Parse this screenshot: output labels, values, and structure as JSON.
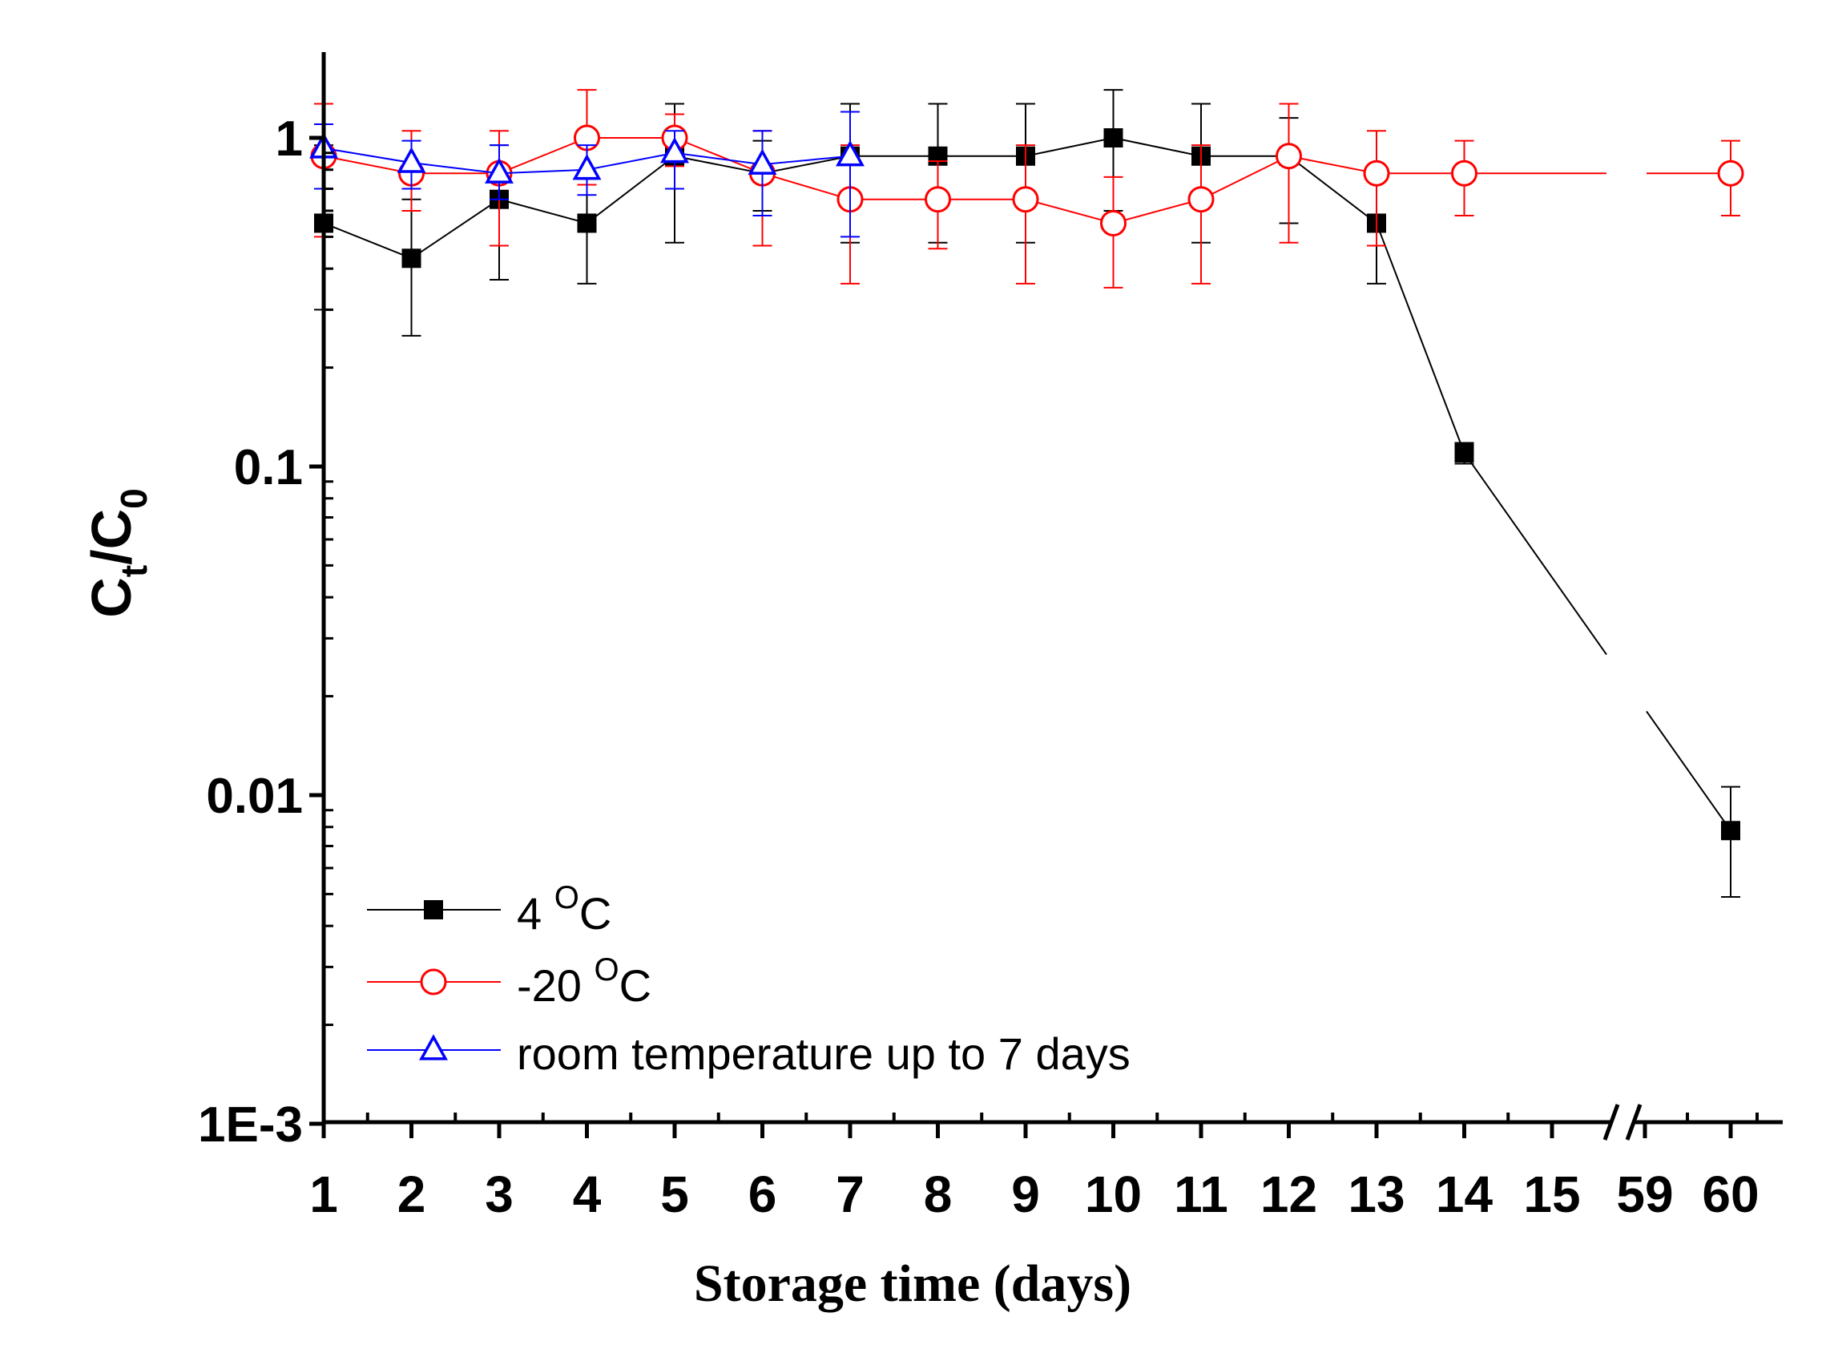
{
  "chart_data": {
    "type": "line",
    "yscale": "log",
    "xlabel": "Storage time (days)",
    "ylabel": {
      "main": "C",
      "sub1": "t",
      "mid": "/C",
      "sub2": "0"
    },
    "ylim": [
      0.001,
      2
    ],
    "x_categories": [
      "1",
      "2",
      "3",
      "4",
      "5",
      "6",
      "7",
      "8",
      "9",
      "10",
      "11",
      "12",
      "13",
      "14",
      "15",
      "59",
      "60"
    ],
    "y_ticks": [
      {
        "value": 1,
        "label": "1"
      },
      {
        "value": 0.1,
        "label": "0.1"
      },
      {
        "value": 0.01,
        "label": "0.01"
      },
      {
        "value": 0.001,
        "label": "1E-3"
      }
    ],
    "axis_break_after": "15",
    "series": [
      {
        "name": "4 °C",
        "legend_label": "4 ",
        "legend_sup": "O",
        "legend_suffix": "C",
        "color": "#000000",
        "marker": "filled-square",
        "x": [
          "1",
          "2",
          "3",
          "4",
          "5",
          "6",
          "7",
          "8",
          "9",
          "10",
          "11",
          "12",
          "13",
          "14",
          "60"
        ],
        "y": [
          0.55,
          0.43,
          0.65,
          0.55,
          0.88,
          0.78,
          0.88,
          0.88,
          0.88,
          1.0,
          0.88,
          0.88,
          0.55,
          0.11,
          0.0078
        ],
        "err_low": [
          0.3,
          0.25,
          0.37,
          0.36,
          0.48,
          0.6,
          0.48,
          0.48,
          0.48,
          0.6,
          0.48,
          0.55,
          0.36,
          0.102,
          0.0049
        ],
        "err_high": [
          0.95,
          0.65,
          0.95,
          0.75,
          1.27,
          0.98,
          1.27,
          1.27,
          1.27,
          1.4,
          1.27,
          1.15,
          0.75,
          0.118,
          0.0106
        ]
      },
      {
        "name": "-20 °C",
        "legend_label": "-20 ",
        "legend_sup": "O",
        "legend_suffix": "C",
        "color": "#ff0000",
        "marker": "open-circle",
        "x": [
          "1",
          "2",
          "3",
          "4",
          "5",
          "6",
          "7",
          "8",
          "9",
          "10",
          "11",
          "12",
          "13",
          "14",
          "60"
        ],
        "y": [
          0.88,
          0.78,
          0.78,
          1.0,
          1.0,
          0.78,
          0.65,
          0.65,
          0.65,
          0.55,
          0.65,
          0.88,
          0.78,
          0.78,
          0.78
        ],
        "err_low": [
          0.5,
          0.6,
          0.47,
          0.72,
          0.82,
          0.47,
          0.36,
          0.46,
          0.36,
          0.35,
          0.36,
          0.48,
          0.47,
          0.58,
          0.58
        ],
        "err_high": [
          1.27,
          1.05,
          1.05,
          1.4,
          1.18,
          1.05,
          0.95,
          0.85,
          0.95,
          0.76,
          0.95,
          1.27,
          1.05,
          0.98,
          0.98
        ]
      },
      {
        "name": "room temperature up to 7 days",
        "legend_label": "room temperature up to 7 days",
        "legend_sup": "",
        "legend_suffix": "",
        "color": "#0000ff",
        "marker": "open-triangle",
        "x": [
          "1",
          "2",
          "3",
          "4",
          "5",
          "6",
          "7"
        ],
        "y": [
          0.93,
          0.84,
          0.78,
          0.8,
          0.9,
          0.83,
          0.88
        ],
        "err_low": [
          0.7,
          0.7,
          0.65,
          0.67,
          0.7,
          0.58,
          0.5
        ],
        "err_high": [
          1.1,
          0.98,
          0.95,
          0.95,
          1.05,
          1.05,
          1.2
        ]
      }
    ],
    "legend_position": "bottom-left"
  }
}
